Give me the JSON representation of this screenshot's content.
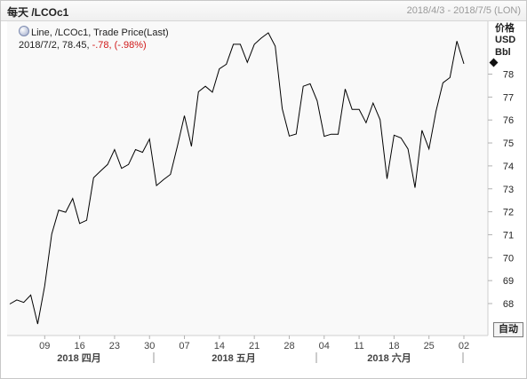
{
  "header": {
    "title": "每天 /LCOc1",
    "date_range": "2018/4/3 - 2018/7/5 (LON)"
  },
  "legend": {
    "line1": "Line, /LCOc1, Trade Price(Last)",
    "date": "2018/7/2, 78.45,",
    "change": "-.78, (-.98%)"
  },
  "axis": {
    "unit_top": "价格",
    "unit_mid": "USD",
    "unit_bottom": "Bbl"
  },
  "controls": {
    "auto_label": "自动"
  },
  "colors": {
    "line": "#000000",
    "negative": "#d01818",
    "tick": "#b0b0b0"
  },
  "chart_data": {
    "type": "line",
    "series": [
      {
        "values": [
          67.98,
          68.16,
          68.05,
          68.37,
          67.11,
          68.77,
          71.03,
          72.07,
          71.98,
          72.58,
          71.49,
          71.63,
          73.48,
          73.78,
          74.06,
          74.71,
          73.89,
          74.06,
          74.71,
          74.59,
          75.17,
          73.14,
          73.4,
          73.63,
          74.87,
          76.19,
          74.85,
          77.23,
          77.47,
          77.21,
          78.23,
          78.43,
          79.3,
          79.3,
          78.51,
          79.3,
          79.57,
          79.8,
          79.22,
          76.49,
          75.3,
          75.39,
          77.47,
          77.58,
          76.83,
          75.29,
          75.38,
          75.38,
          77.35,
          76.46,
          76.46,
          75.88,
          76.74,
          76.01,
          73.44,
          75.34,
          75.22,
          74.74,
          73.05,
          75.55,
          74.74,
          76.38,
          77.62,
          77.85,
          79.44,
          78.45
        ]
      }
    ],
    "x_ticks": [
      "09",
      "16",
      "23",
      "30",
      "07",
      "14",
      "21",
      "28",
      "04",
      "11",
      "18",
      "25",
      "02"
    ],
    "y_ticks": [
      68,
      69,
      70,
      71,
      72,
      73,
      74,
      75,
      76,
      77,
      78
    ],
    "ylim": [
      66.9,
      80.5
    ],
    "month_labels": [
      "2018 四月",
      "2018 五月",
      "2018 六月"
    ],
    "grid": false
  }
}
